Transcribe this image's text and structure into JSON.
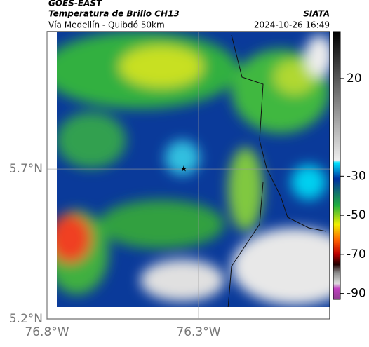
{
  "header": {
    "source": "GOES-EAST",
    "title": "Temperatura de Brillo CH13",
    "subtitle": "Vía Medellín - Quibdó 50km",
    "agency": "SIATA",
    "datetime": "2024-10-26 16:49"
  },
  "map": {
    "lon_range": [
      -76.8,
      -75.867
    ],
    "lat_range": [
      5.2,
      6.158
    ],
    "lat_ticks": [
      {
        "value": 5.7,
        "label": "5.7°N"
      },
      {
        "value": 5.2,
        "label": "5.2°N"
      }
    ],
    "lon_ticks": [
      {
        "value": -76.8,
        "label": "76.8°W"
      },
      {
        "value": -76.3,
        "label": "76.3°W"
      }
    ],
    "colorbar": {
      "range": [
        44,
        -93
      ],
      "ticks": [
        20,
        -30,
        -50,
        -70,
        -90
      ]
    }
  }
}
